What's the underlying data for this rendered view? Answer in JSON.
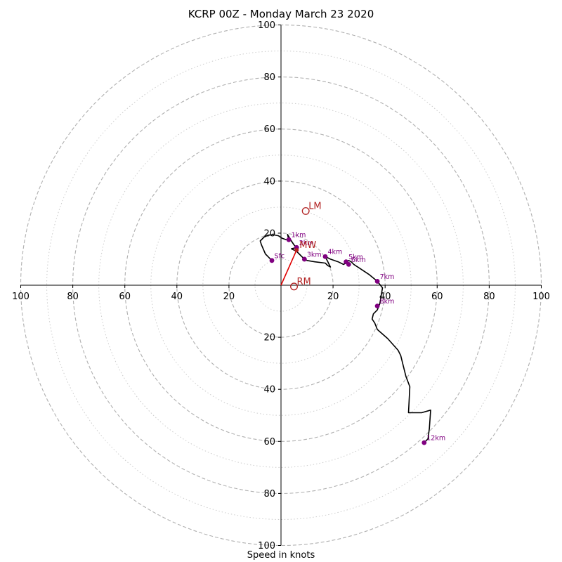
{
  "chart_data": {
    "type": "hodograph",
    "title": "KCRP 00Z - Monday March 23 2020",
    "xlabel": "Speed in knots",
    "range": [
      -100,
      100
    ],
    "ring_major": [
      20,
      40,
      60,
      80,
      100
    ],
    "ring_minor": [
      10,
      30,
      50,
      70,
      90
    ],
    "ticks_x": [
      {
        "v": -100,
        "label": "100"
      },
      {
        "v": -80,
        "label": "80"
      },
      {
        "v": -60,
        "label": "60"
      },
      {
        "v": -40,
        "label": "40"
      },
      {
        "v": -20,
        "label": "20"
      },
      {
        "v": 20,
        "label": "20"
      },
      {
        "v": 40,
        "label": "40"
      },
      {
        "v": 60,
        "label": "60"
      },
      {
        "v": 80,
        "label": "80"
      },
      {
        "v": 100,
        "label": "100"
      }
    ],
    "ticks_y": [
      {
        "v": 100,
        "label": "100"
      },
      {
        "v": 80,
        "label": "80"
      },
      {
        "v": 60,
        "label": "60"
      },
      {
        "v": 40,
        "label": "40"
      },
      {
        "v": 20,
        "label": "20"
      },
      {
        "v": -20,
        "label": "20"
      },
      {
        "v": -40,
        "label": "40"
      },
      {
        "v": -60,
        "label": "60"
      },
      {
        "v": -80,
        "label": "80"
      },
      {
        "v": -100,
        "label": "100"
      }
    ],
    "hodograph_line": [
      [
        -3.5,
        9.5
      ],
      [
        -6,
        12
      ],
      [
        -7.5,
        15.5
      ],
      [
        -8,
        17
      ],
      [
        -6.5,
        18.5
      ],
      [
        -5,
        19.2
      ],
      [
        -3,
        19.4
      ],
      [
        -1,
        19
      ],
      [
        0.5,
        18
      ],
      [
        2,
        17.5
      ],
      [
        3,
        17.5
      ],
      [
        2.5,
        19.5
      ],
      [
        4,
        17
      ],
      [
        5,
        15.5
      ],
      [
        6,
        14.5
      ],
      [
        4,
        14
      ],
      [
        6,
        13
      ],
      [
        7,
        12
      ],
      [
        9,
        10
      ],
      [
        10,
        9.5
      ],
      [
        13,
        9
      ],
      [
        17,
        8.5
      ],
      [
        18,
        7.5
      ],
      [
        19,
        7
      ],
      [
        17,
        11
      ],
      [
        19,
        10
      ],
      [
        22,
        9
      ],
      [
        24,
        8
      ],
      [
        25,
        8.5
      ],
      [
        26,
        9.5
      ],
      [
        27,
        9
      ],
      [
        28,
        8
      ],
      [
        31,
        6
      ],
      [
        34,
        4
      ],
      [
        37,
        1.5
      ],
      [
        39,
        -1
      ],
      [
        38.5,
        -4
      ],
      [
        38,
        -7
      ],
      [
        37,
        -9.5
      ],
      [
        35.5,
        -11
      ],
      [
        35,
        -13
      ],
      [
        36,
        -14.5
      ],
      [
        37,
        -17
      ],
      [
        41,
        -20.5
      ],
      [
        45,
        -25
      ],
      [
        46,
        -27
      ],
      [
        47,
        -31
      ],
      [
        48,
        -35
      ],
      [
        49.5,
        -39
      ],
      [
        49,
        -49
      ],
      [
        54,
        -49
      ],
      [
        57.5,
        -48
      ],
      [
        57,
        -55
      ],
      [
        56.5,
        -59
      ],
      [
        55,
        -60.5
      ]
    ],
    "points": [
      {
        "u": -3.5,
        "v": 9.5,
        "label": "Sfc"
      },
      {
        "u": 3,
        "v": 17.5,
        "label": "1km"
      },
      {
        "u": 6,
        "v": 14.5,
        "label": "2km"
      },
      {
        "u": 9,
        "v": 10,
        "label": "3km"
      },
      {
        "u": 17,
        "v": 11,
        "label": "4km"
      },
      {
        "u": 25,
        "v": 9,
        "label": "5km"
      },
      {
        "u": 26,
        "v": 8,
        "label": "6km"
      },
      {
        "u": 37,
        "v": 1.5,
        "label": "7km"
      },
      {
        "u": 37,
        "v": -8,
        "label": "8km"
      },
      {
        "u": 55,
        "v": -60.5,
        "label": "12km"
      }
    ],
    "motions": [
      {
        "u": 9.5,
        "v": 28.5,
        "label": "LM"
      },
      {
        "u": 5,
        "v": -0.5,
        "label": "RM"
      },
      {
        "u": 6,
        "v": 13.5,
        "label": "MW"
      }
    ],
    "mean_wind_vector": {
      "u": 6,
      "v": 13.5
    },
    "colors": {
      "hodograph": "#000000",
      "points": "#800080",
      "motions": "#b22222",
      "vector": "#e00000",
      "grid": "#b0b0b0"
    }
  }
}
